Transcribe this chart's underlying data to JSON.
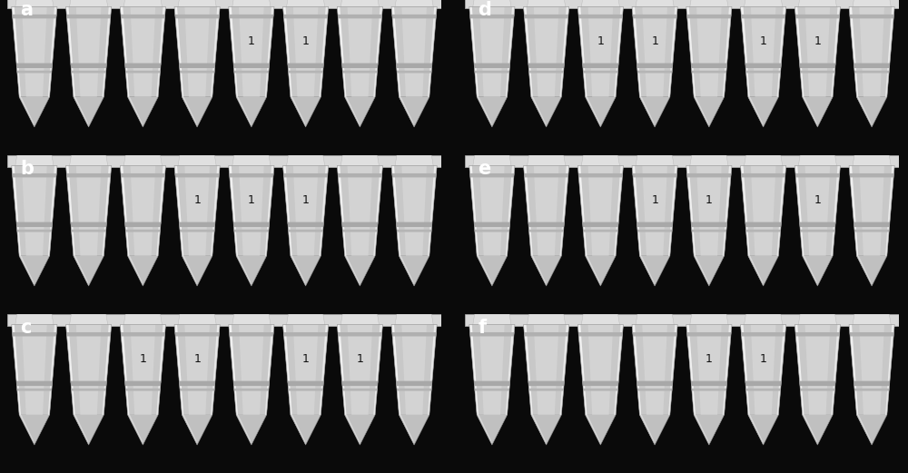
{
  "figure_width": 10.0,
  "figure_height": 5.21,
  "dpi": 100,
  "bg_color": "#0a0a0a",
  "panel_label_color": "#ffffff",
  "panel_label_fontsize": 15,
  "mark_label": "1",
  "mark_fontsize": 9,
  "mark_color": "#111111",
  "panels": [
    {
      "id": "a",
      "row": 0,
      "col": 0,
      "n_tubes": 8,
      "marked_tubes": [
        4,
        5
      ]
    },
    {
      "id": "b",
      "row": 1,
      "col": 0,
      "n_tubes": 8,
      "marked_tubes": [
        3,
        4,
        5
      ]
    },
    {
      "id": "c",
      "row": 2,
      "col": 0,
      "n_tubes": 8,
      "marked_tubes": [
        2,
        3,
        5,
        6
      ]
    },
    {
      "id": "d",
      "row": 0,
      "col": 1,
      "n_tubes": 8,
      "marked_tubes": [
        2,
        3,
        5,
        6
      ]
    },
    {
      "id": "e",
      "row": 1,
      "col": 1,
      "n_tubes": 8,
      "marked_tubes": [
        3,
        4,
        6
      ]
    },
    {
      "id": "f",
      "row": 2,
      "col": 1,
      "n_tubes": 8,
      "marked_tubes": [
        4,
        5
      ]
    }
  ]
}
